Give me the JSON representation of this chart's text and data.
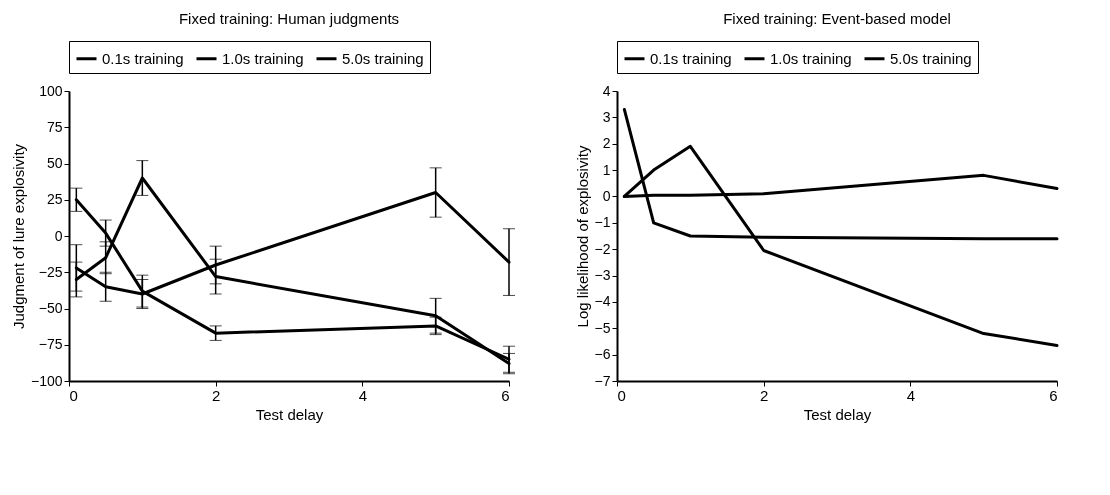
{
  "chart_data": [
    {
      "type": "line",
      "title": "Fixed training: Human judgments",
      "xlabel": "Test delay",
      "ylabel": "Judgment of lure explosivity",
      "x": [
        0.1,
        0.5,
        1,
        2,
        5,
        6
      ],
      "xlim": [
        0,
        6
      ],
      "xticks": [
        0,
        2,
        4,
        6
      ],
      "ylim": [
        -100,
        100
      ],
      "yticks": [
        -100,
        -75,
        -50,
        -25,
        0,
        25,
        50,
        75,
        100
      ],
      "grid": false,
      "legend": "top",
      "marker": "none",
      "line_style": "solid",
      "series": [
        {
          "name": "0.1s training",
          "color": "#000000",
          "values": [
            25,
            2,
            -38,
            -67,
            -62,
            -85
          ],
          "errors": [
            8,
            9,
            11,
            5,
            6,
            9
          ]
        },
        {
          "name": "1.0s training",
          "color": "#000000",
          "values": [
            -30,
            -15,
            40,
            -28,
            -55,
            -88
          ],
          "errors": [
            12,
            11,
            12,
            12,
            12,
            7
          ]
        },
        {
          "name": "5.0s training",
          "color": "#000000",
          "values": [
            -22,
            -35,
            -40,
            -20,
            30,
            -18
          ],
          "errors": [
            16,
            10,
            10,
            13,
            17,
            23
          ]
        }
      ]
    },
    {
      "type": "line",
      "title": "Fixed training: Event-based model",
      "xlabel": "Test delay",
      "ylabel": "Log likelihood of explosivity",
      "x": [
        0.1,
        0.5,
        1,
        2,
        5,
        6
      ],
      "xlim": [
        0,
        6
      ],
      "xticks": [
        0,
        2,
        4,
        6
      ],
      "ylim": [
        -7,
        4
      ],
      "yticks": [
        -7,
        -6,
        -5,
        -4,
        -3,
        -2,
        -1,
        0,
        1,
        2,
        3,
        4
      ],
      "grid": false,
      "legend": "top",
      "marker": "none",
      "line_style": "solid",
      "series": [
        {
          "name": "0.1s training",
          "color": "#000000",
          "values": [
            3.3,
            -1,
            -1.5,
            -1.55,
            -1.6,
            -1.6
          ]
        },
        {
          "name": "1.0s training",
          "color": "#000000",
          "values": [
            0,
            1,
            1.9,
            -2.05,
            -5.2,
            -5.65
          ]
        },
        {
          "name": "5.0s training",
          "color": "#000000",
          "values": [
            0,
            0.05,
            0.05,
            0.1,
            0.8,
            0.3
          ]
        }
      ]
    }
  ]
}
